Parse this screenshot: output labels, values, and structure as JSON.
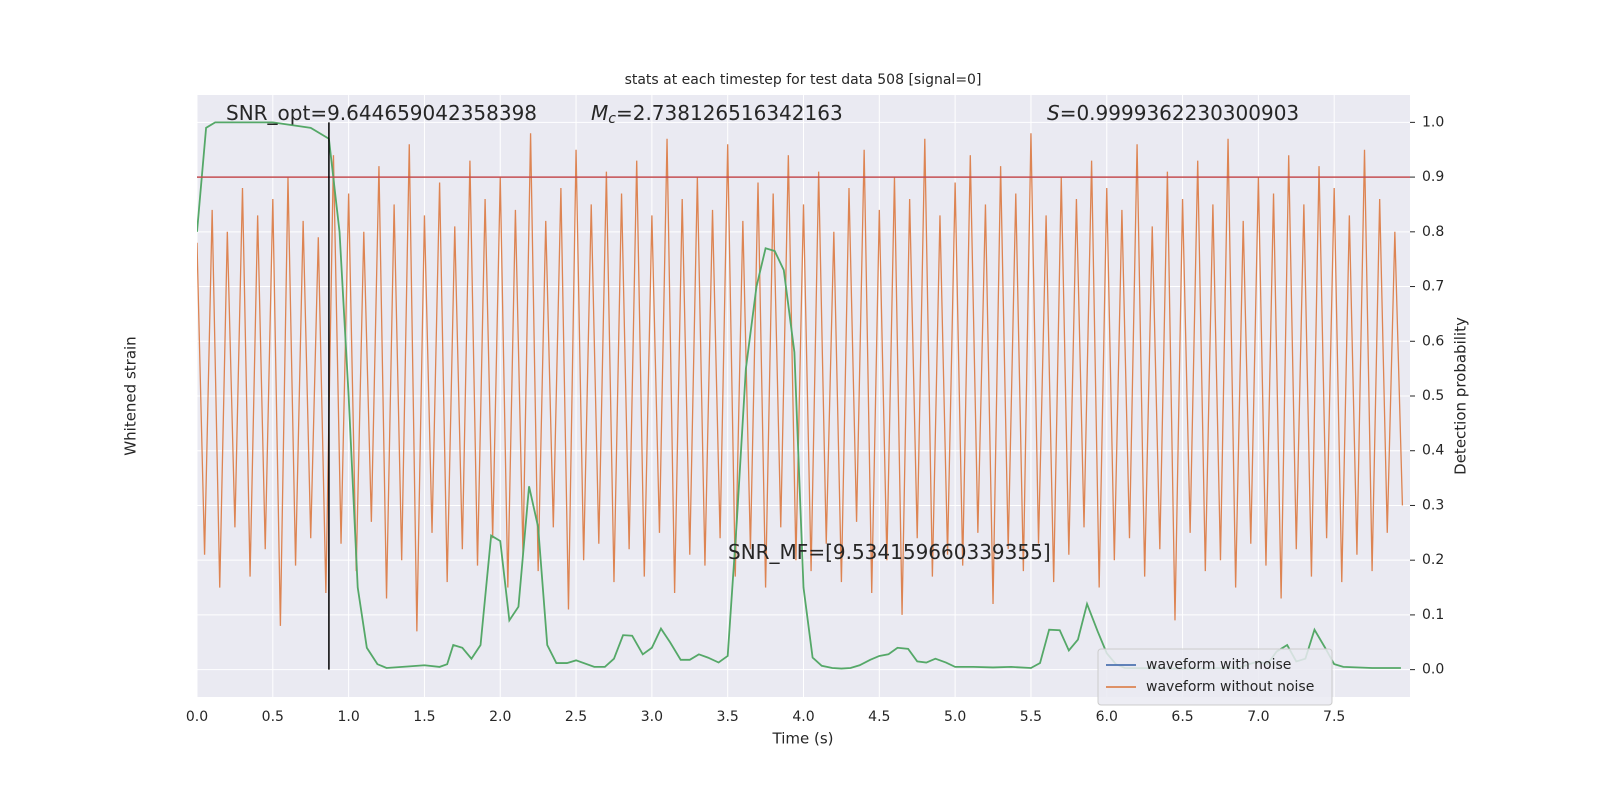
{
  "chart_data": {
    "type": "line",
    "title": "stats at each timestep for test data 508 [signal=0]",
    "xlabel": "Time (s)",
    "ylabel_left": "Whitened strain",
    "ylabel_right": "Detection probability",
    "xlim": [
      0,
      8.0
    ],
    "ylim": [
      -0.05,
      1.05
    ],
    "xticks": [
      {
        "value": 0,
        "label": "0.0"
      },
      0.5,
      {
        "value": 1,
        "label": "1.0"
      },
      1.5,
      {
        "value": 2,
        "label": "2.0"
      },
      2.5,
      {
        "value": 3,
        "label": "3.0"
      },
      3.5,
      {
        "value": 4,
        "label": "4.0"
      },
      4.5,
      {
        "value": 5,
        "label": "5.0"
      },
      5.5,
      {
        "value": 6,
        "label": "6.0"
      },
      6.5,
      {
        "value": 7,
        "label": "7.0"
      },
      7.5
    ],
    "yticks": [
      {
        "value": 0,
        "label": "0.0"
      },
      0.1,
      0.2,
      0.3,
      0.4,
      0.5,
      0.6,
      0.7,
      0.8,
      0.9,
      {
        "value": 1,
        "label": "1.0"
      }
    ],
    "grid": true,
    "legend": {
      "loc": "lower right",
      "entries": [
        {
          "name": "waveform with noise",
          "color": "#4c72b0"
        },
        {
          "name": "waveform without noise",
          "color": "#dd8452"
        }
      ]
    },
    "series": [
      {
        "color": "#dd8452",
        "x": [
          0,
          0.05,
          0.1,
          0.15,
          0.2,
          0.25,
          0.3,
          0.35,
          0.4,
          0.45,
          0.5,
          0.55,
          0.6,
          0.65,
          0.7,
          0.75,
          0.8,
          0.85,
          0.9,
          0.95,
          1,
          1.05,
          1.1,
          1.15,
          1.2,
          1.25,
          1.3,
          1.35,
          1.4,
          1.45,
          1.5,
          1.55,
          1.6,
          1.65,
          1.7,
          1.75,
          1.8,
          1.85,
          1.9,
          1.95,
          2,
          2.05,
          2.1,
          2.15,
          2.2,
          2.25,
          2.3,
          2.35,
          2.4,
          2.45,
          2.5,
          2.55,
          2.6,
          2.65,
          2.7,
          2.75,
          2.8,
          2.85,
          2.9,
          2.95,
          3,
          3.05,
          3.1,
          3.15,
          3.2,
          3.25,
          3.3,
          3.35,
          3.4,
          3.45,
          3.5,
          3.55,
          3.6,
          3.65,
          3.7,
          3.75,
          3.8,
          3.85,
          3.9,
          3.95,
          4,
          4.05,
          4.1,
          4.15,
          4.2,
          4.25,
          4.3,
          4.35,
          4.4,
          4.45,
          4.5,
          4.55,
          4.6,
          4.65,
          4.7,
          4.75,
          4.8,
          4.85,
          4.9,
          4.95,
          5,
          5.05,
          5.1,
          5.15,
          5.2,
          5.25,
          5.3,
          5.35,
          5.4,
          5.45,
          5.5,
          5.55,
          5.6,
          5.65,
          5.7,
          5.75,
          5.8,
          5.85,
          5.9,
          5.95,
          6,
          6.05,
          6.1,
          6.15,
          6.2,
          6.25,
          6.3,
          6.35,
          6.4,
          6.45,
          6.5,
          6.55,
          6.6,
          6.65,
          6.7,
          6.75,
          6.8,
          6.85,
          6.9,
          6.95,
          7,
          7.05,
          7.1,
          7.15,
          7.2,
          7.25,
          7.3,
          7.35,
          7.4,
          7.45,
          7.5,
          7.55,
          7.6,
          7.65,
          7.7,
          7.75,
          7.8,
          7.85,
          7.9,
          7.95
        ],
        "values": [
          0.78,
          0.21,
          0.84,
          0.15,
          0.8,
          0.26,
          0.88,
          0.17,
          0.83,
          0.22,
          0.86,
          0.08,
          0.9,
          0.19,
          0.82,
          0.24,
          0.79,
          0.14,
          0.94,
          0.23,
          0.87,
          0.18,
          0.8,
          0.27,
          0.92,
          0.13,
          0.85,
          0.2,
          0.96,
          0.07,
          0.83,
          0.25,
          0.89,
          0.16,
          0.81,
          0.22,
          0.93,
          0.19,
          0.86,
          0.24,
          0.9,
          0.15,
          0.84,
          0.21,
          0.98,
          0.18,
          0.82,
          0.26,
          0.88,
          0.11,
          0.95,
          0.2,
          0.85,
          0.23,
          0.91,
          0.16,
          0.87,
          0.22,
          0.93,
          0.17,
          0.83,
          0.25,
          0.97,
          0.14,
          0.86,
          0.21,
          0.9,
          0.19,
          0.84,
          0.24,
          0.96,
          0.17,
          0.82,
          0.22,
          0.89,
          0.15,
          0.87,
          0.26,
          0.94,
          0.2,
          0.85,
          0.18,
          0.91,
          0.23,
          0.8,
          0.16,
          0.88,
          0.27,
          0.95,
          0.14,
          0.84,
          0.2,
          0.9,
          0.1,
          0.86,
          0.24,
          0.97,
          0.17,
          0.83,
          0.21,
          0.89,
          0.19,
          0.94,
          0.25,
          0.85,
          0.12,
          0.92,
          0.22,
          0.87,
          0.18,
          0.98,
          0.23,
          0.83,
          0.16,
          0.9,
          0.21,
          0.86,
          0.26,
          0.93,
          0.15,
          0.88,
          0.2,
          0.84,
          0.24,
          0.96,
          0.17,
          0.81,
          0.22,
          0.91,
          0.09,
          0.86,
          0.25,
          0.93,
          0.18,
          0.85,
          0.2,
          0.97,
          0.15,
          0.82,
          0.23,
          0.9,
          0.19,
          0.87,
          0.13,
          0.94,
          0.22,
          0.85,
          0.17,
          0.92,
          0.24,
          0.88,
          0.16,
          0.83,
          0.21,
          0.95,
          0.18,
          0.86,
          0.25,
          0.8,
          0.3
        ]
      },
      {
        "color": "#55a868",
        "x": [
          0,
          0.06,
          0.12,
          0.5,
          0.75,
          0.87,
          0.94,
          1.0,
          1.06,
          1.12,
          1.19,
          1.25,
          1.4,
          1.5,
          1.6,
          1.65,
          1.69,
          1.75,
          1.81,
          1.87,
          1.94,
          2.0,
          2.06,
          2.12,
          2.19,
          2.25,
          2.31,
          2.37,
          2.44,
          2.5,
          2.62,
          2.69,
          2.75,
          2.81,
          2.87,
          2.94,
          3.0,
          3.06,
          3.12,
          3.19,
          3.25,
          3.31,
          3.37,
          3.44,
          3.5,
          3.56,
          3.62,
          3.69,
          3.75,
          3.81,
          3.87,
          3.94,
          4.0,
          4.06,
          4.12,
          4.19,
          4.25,
          4.31,
          4.37,
          4.44,
          4.5,
          4.56,
          4.62,
          4.69,
          4.75,
          4.81,
          4.87,
          4.94,
          5.0,
          5.12,
          5.25,
          5.37,
          5.5,
          5.56,
          5.62,
          5.69,
          5.75,
          5.81,
          5.87,
          5.94,
          6.0,
          6.06,
          6.12,
          6.5,
          6.87,
          6.94,
          7.0,
          7.06,
          7.12,
          7.19,
          7.25,
          7.31,
          7.37,
          7.44,
          7.5,
          7.56,
          7.75,
          7.94
        ],
        "values": [
          0.8,
          0.99,
          1.0,
          1.0,
          0.99,
          0.97,
          0.8,
          0.5,
          0.15,
          0.04,
          0.01,
          0.003,
          0.006,
          0.008,
          0.005,
          0.01,
          0.045,
          0.04,
          0.02,
          0.045,
          0.245,
          0.235,
          0.09,
          0.115,
          0.335,
          0.26,
          0.045,
          0.012,
          0.012,
          0.017,
          0.005,
          0.005,
          0.02,
          0.063,
          0.062,
          0.028,
          0.04,
          0.075,
          0.05,
          0.018,
          0.018,
          0.028,
          0.022,
          0.013,
          0.025,
          0.27,
          0.55,
          0.7,
          0.77,
          0.765,
          0.73,
          0.58,
          0.15,
          0.022,
          0.007,
          0.003,
          0.002,
          0.003,
          0.008,
          0.018,
          0.025,
          0.028,
          0.04,
          0.038,
          0.015,
          0.013,
          0.02,
          0.013,
          0.005,
          0.005,
          0.004,
          0.005,
          0.003,
          0.012,
          0.073,
          0.072,
          0.035,
          0.055,
          0.12,
          0.07,
          0.03,
          0.01,
          0.003,
          0.002,
          0.003,
          0.01,
          0.015,
          0.01,
          0.033,
          0.045,
          0.015,
          0.02,
          0.073,
          0.04,
          0.01,
          0.005,
          0.003,
          0.003
        ]
      }
    ],
    "threshold": {
      "value": 0.9,
      "color": "#c44e52"
    },
    "marker_line": {
      "x": 0.87,
      "y": [
        0,
        1
      ],
      "color": "#000000"
    },
    "annotations": [
      {
        "text": "SNR_opt=9.644659042358398"
      },
      {
        "symbol": "M",
        "subscript": "c",
        "text": "=2.738126516342163"
      },
      {
        "symbol": "S",
        "text": "=0.9999362230300903"
      },
      {
        "text": "SNR_MF=[9.534159660339355]"
      }
    ]
  }
}
